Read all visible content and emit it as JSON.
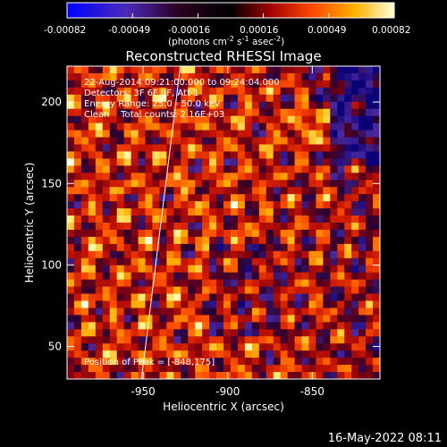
{
  "colorbar": {
    "ticks": [
      "-0.00082",
      "-0.00049",
      "-0.00016",
      "0.00016",
      "0.00049",
      "0.00082"
    ],
    "units_prefix": "(photons cm",
    "units_exp1": "-2",
    "units_mid": " s",
    "units_exp2": "-1",
    "units_mid2": " asec",
    "units_exp3": "-2",
    "units_suffix": ")"
  },
  "annotations": {
    "line1": "22-Aug-2014 09:21:00.000 to 09:24:04.000",
    "line2": "Detectors: 3F 6F 9F, Att 1",
    "line3": "Energy Range: 25.0 - 50.0 keV",
    "line4": "Clean    Total counts: 2.16E+03",
    "bottom": "Position of Peak = [-848,175]"
  },
  "footer": {
    "timestamp": "16-May-2022 08:11"
  },
  "chart_data": {
    "type": "heatmap",
    "title": "Reconstructed RHESSI Image",
    "xlabel": "Heliocentric X (arcsec)",
    "ylabel": "Heliocentric Y (arcsec)",
    "xlim": [
      -995,
      -810
    ],
    "ylim": [
      30,
      222
    ],
    "x_ticks": [
      -950,
      -900,
      -850
    ],
    "x_tick_labels": [
      "-950",
      "-900",
      "-850"
    ],
    "y_ticks": [
      50,
      100,
      150,
      200
    ],
    "y_tick_labels": [
      "50",
      "100",
      "150",
      "200"
    ],
    "color_range": [
      -0.00082,
      0.00082
    ],
    "colormap": [
      "#0000ff",
      "#5a2aa0",
      "#000000",
      "#c00000",
      "#ff7a00",
      "#ffff90",
      "#ffffff"
    ],
    "peak": [
      -848,
      175
    ],
    "limb_line": {
      "x": [
        -951,
        -928
      ],
      "y": [
        30,
        222
      ]
    },
    "grid": false
  }
}
